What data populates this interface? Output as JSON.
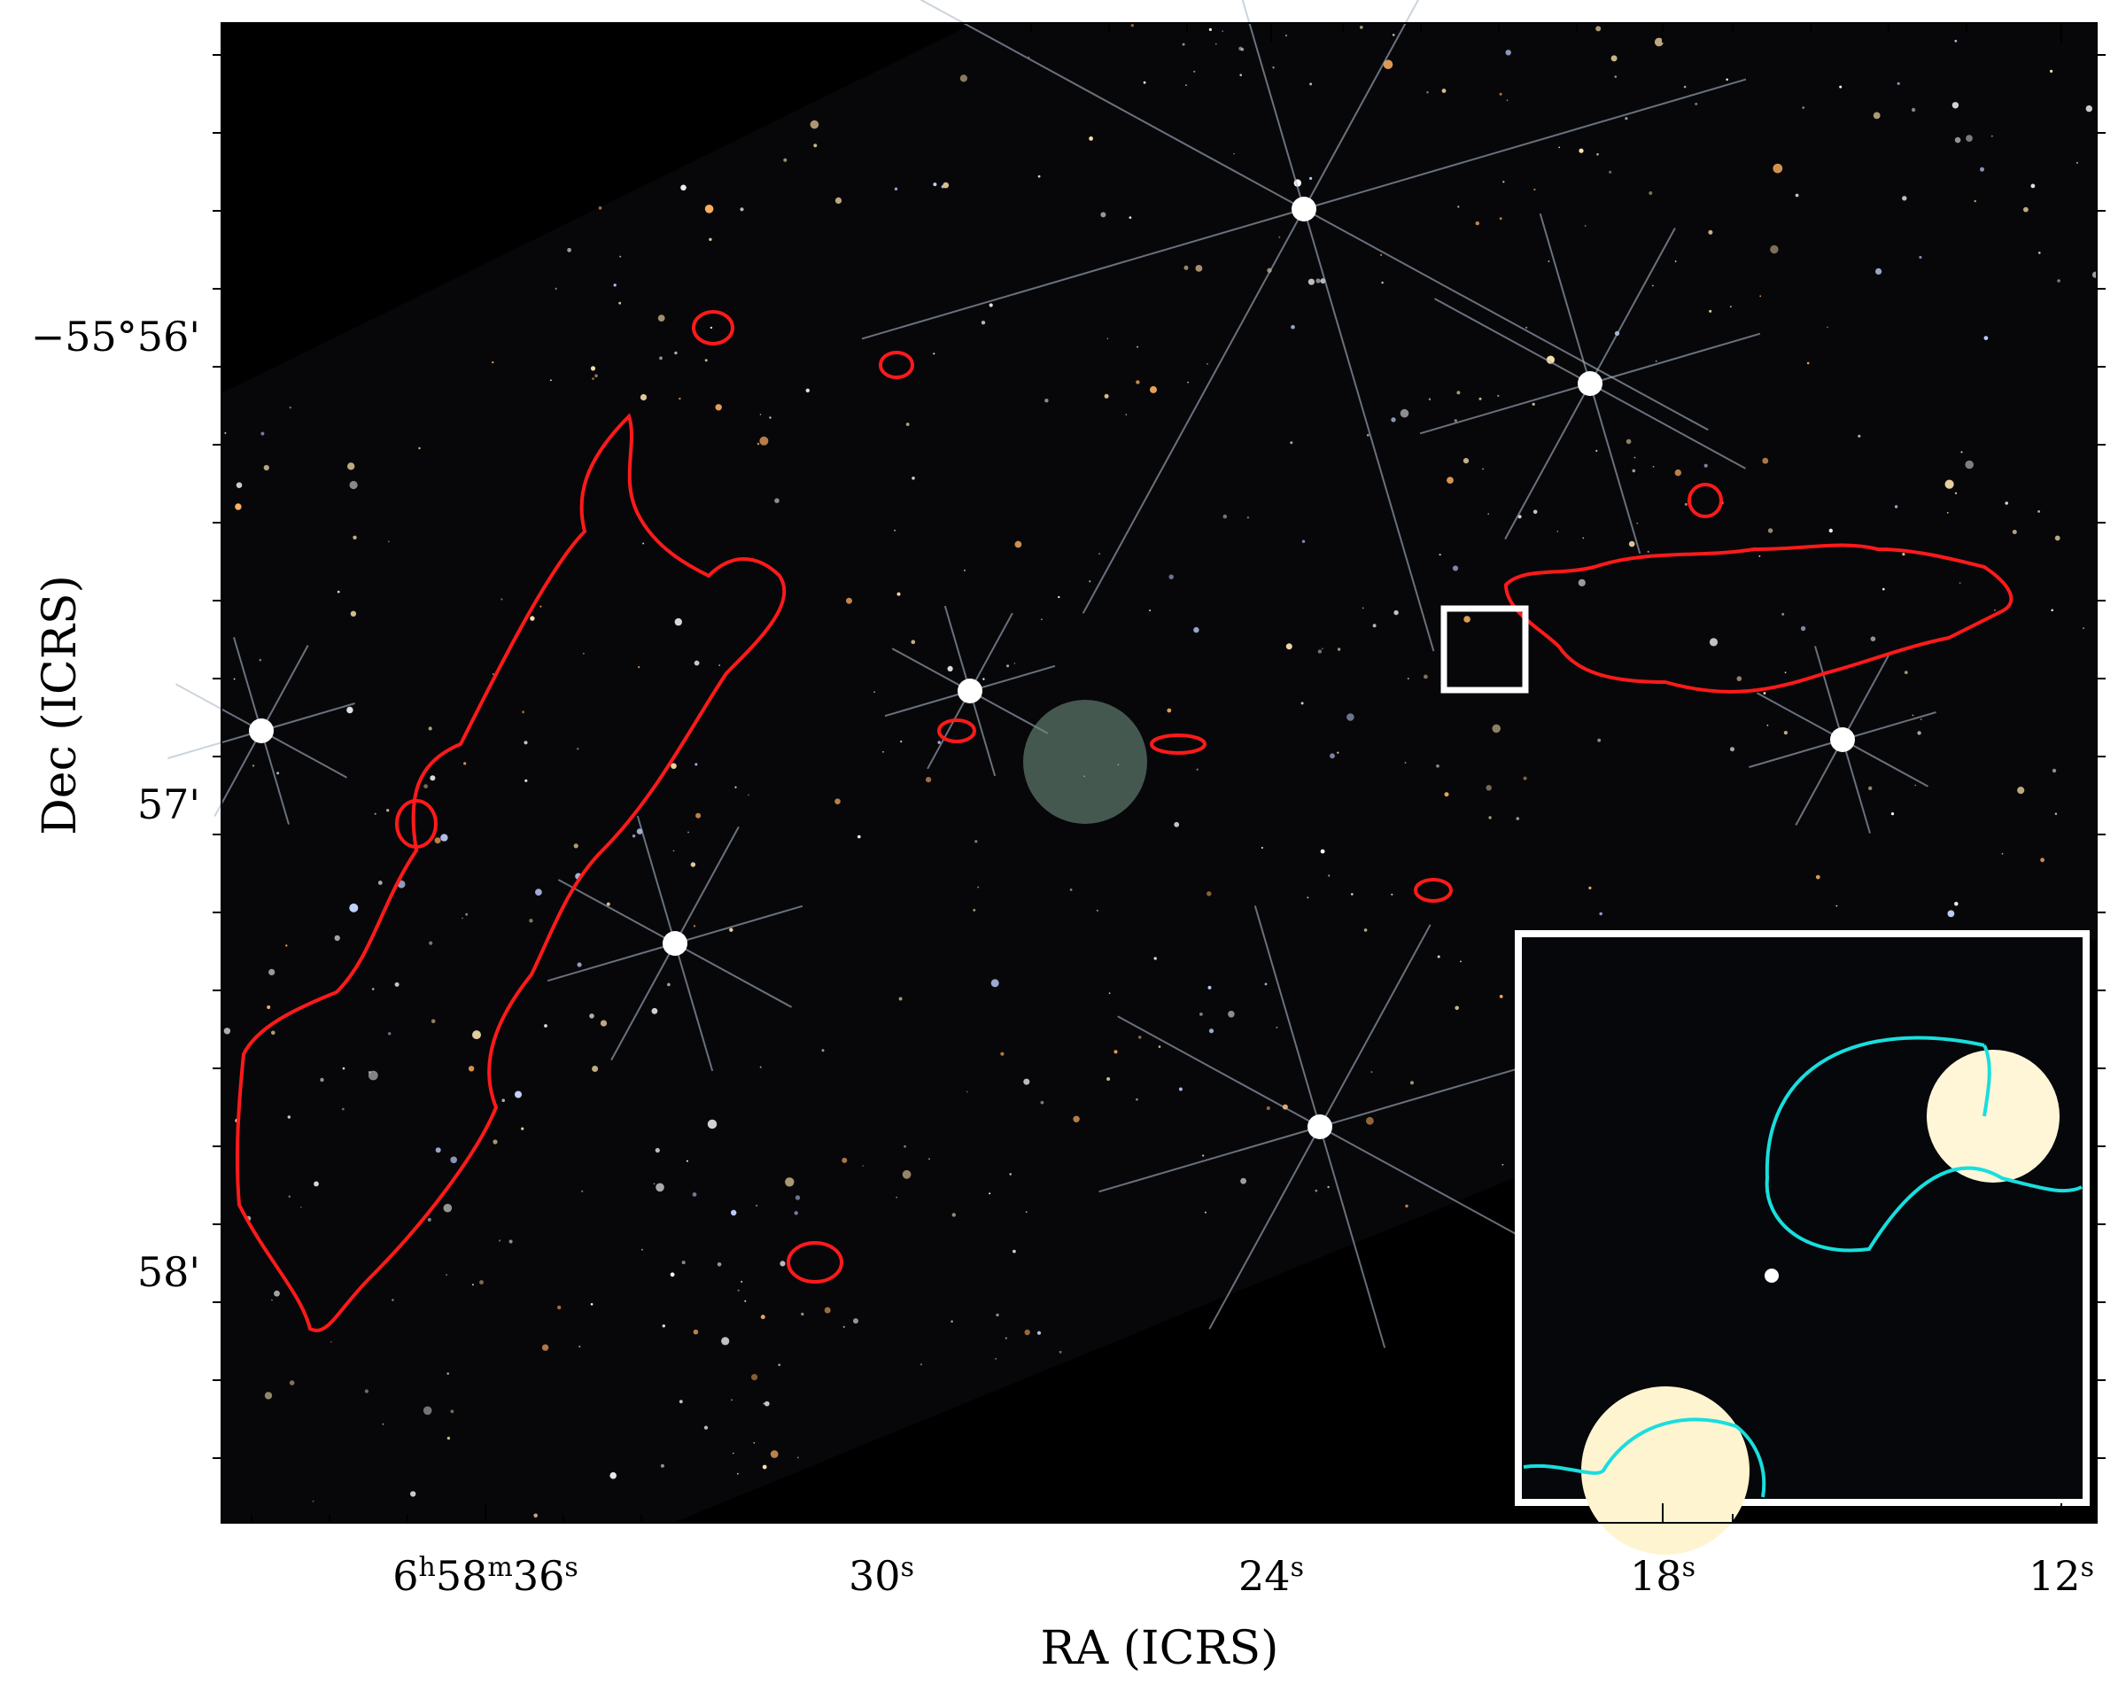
{
  "x_axis": {
    "title": "RA (ICRS)",
    "tick_labels": [
      [
        "6",
        "h",
        "58",
        "m",
        "36",
        "s"
      ],
      [
        "30",
        "s"
      ],
      [
        "24",
        "s"
      ],
      [
        "18",
        "s"
      ],
      [
        "12",
        "s"
      ]
    ]
  },
  "y_axis": {
    "title": "Dec (ICRS)",
    "tick_labels": [
      "−55°56'",
      "57'",
      "58'"
    ]
  }
}
